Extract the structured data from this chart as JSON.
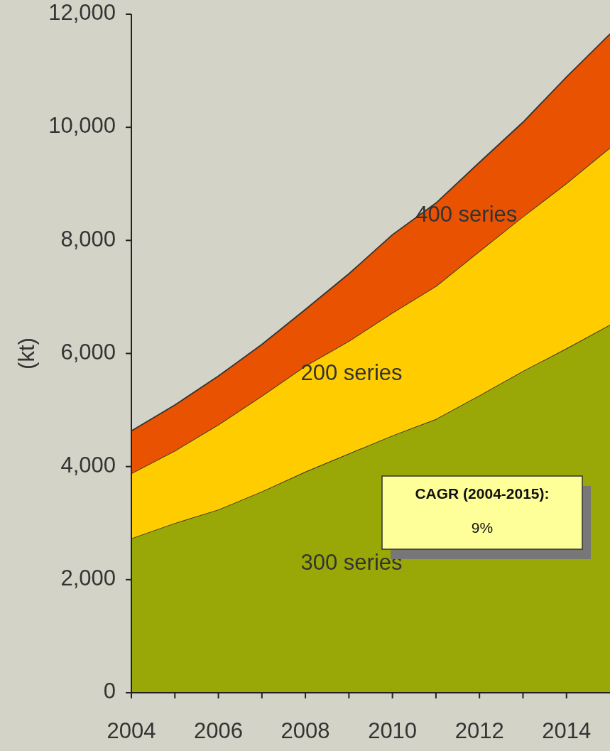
{
  "chart_data": {
    "type": "area",
    "stacked": true,
    "ylabel": "(kt)",
    "x": [
      2004,
      2005,
      2006,
      2007,
      2008,
      2009,
      2010,
      2011,
      2012,
      2013,
      2014,
      2015
    ],
    "series": [
      {
        "name": "300 series",
        "color": "#99a806",
        "values": [
          2730,
          3000,
          3240,
          3560,
          3910,
          4230,
          4550,
          4840,
          5260,
          5690,
          6090,
          6510
        ]
      },
      {
        "name": "200 series",
        "color": "#ffcc00",
        "values": [
          1150,
          1280,
          1500,
          1690,
          1870,
          1990,
          2170,
          2350,
          2550,
          2730,
          2920,
          3130
        ]
      },
      {
        "name": "400 series",
        "color": "#e85200",
        "values": [
          750,
          810,
          860,
          910,
          1000,
          1190,
          1380,
          1470,
          1570,
          1670,
          1880,
          2010
        ]
      }
    ],
    "xlim": [
      2004,
      2015
    ],
    "xticks": [
      2004,
      {
        "value": 2005,
        "label": null
      },
      2006,
      {
        "value": 2007,
        "label": null
      },
      2008,
      {
        "value": 2009,
        "label": null
      },
      2010,
      {
        "value": 2011,
        "label": null
      },
      2012,
      {
        "value": 2013,
        "label": null
      },
      2014
    ],
    "ylim": [
      0,
      12000
    ],
    "yticks": [
      {
        "value": 0,
        "label": "0"
      },
      {
        "value": 2000,
        "label": "2,000"
      },
      {
        "value": 4000,
        "label": "4,000"
      },
      {
        "value": 6000,
        "label": "6,000"
      },
      {
        "value": 8000,
        "label": "8,000"
      },
      {
        "value": 10000,
        "label": "10,000"
      },
      {
        "value": 12000,
        "label": "12,000"
      }
    ],
    "grid": false,
    "annotations": [
      "CAGR (2004-2015):",
      "9%"
    ]
  }
}
